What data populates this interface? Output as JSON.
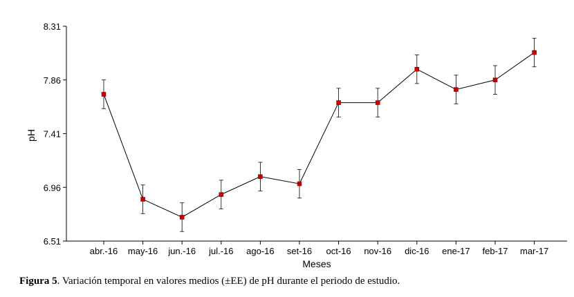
{
  "chart_data": {
    "type": "line",
    "categories": [
      "abr.-16",
      "may-16",
      "jun.-16",
      "jul.-16",
      "ago-16",
      "set-16",
      "oct-16",
      "nov-16",
      "dic-16",
      "ene-17",
      "feb-17",
      "mar-17"
    ],
    "series": [
      {
        "values": [
          7.74,
          6.86,
          6.71,
          6.9,
          7.05,
          6.99,
          7.67,
          7.67,
          7.95,
          7.78,
          7.86,
          8.09
        ],
        "errors": [
          0.12,
          0.12,
          0.12,
          0.12,
          0.12,
          0.12,
          0.12,
          0.12,
          0.12,
          0.12,
          0.12,
          0.12
        ]
      }
    ],
    "xlabel": "Meses",
    "ylabel": "pH",
    "ylim": [
      6.51,
      8.31
    ],
    "yticks": [
      "6.51",
      "6.96",
      "7.41",
      "7.86",
      "8.31"
    ],
    "grid": false,
    "line_color": "#000000",
    "marker_color": "#cc0000"
  },
  "caption": {
    "label": "Figura 5",
    "text": ". Variación temporal en valores medios (±EE) de pH durante el periodo de estudio."
  }
}
